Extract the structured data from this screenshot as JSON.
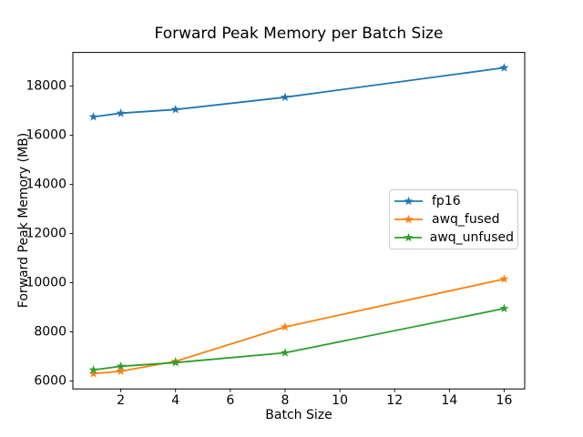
{
  "chart_data": {
    "type": "line",
    "title": "Forward Peak Memory per Batch Size",
    "xlabel": "Batch Size",
    "ylabel": "Forward Peak Memory (MB)",
    "x": [
      1,
      2,
      4,
      8,
      16
    ],
    "series": [
      {
        "name": "fp16",
        "color": "#1f77b4",
        "values": [
          16750,
          16900,
          17050,
          17550,
          18750
        ]
      },
      {
        "name": "awq_fused",
        "color": "#ff7f0e",
        "values": [
          6300,
          6400,
          6800,
          8200,
          10150
        ]
      },
      {
        "name": "awq_unfused",
        "color": "#2ca02c",
        "values": [
          6450,
          6600,
          6750,
          7150,
          8950
        ]
      }
    ],
    "marker": "star",
    "xlim": [
      0.25,
      16.75
    ],
    "ylim": [
      5677.5,
      19372.5
    ],
    "xticks": [
      2,
      4,
      6,
      8,
      10,
      12,
      14,
      16
    ],
    "yticks": [
      6000,
      8000,
      10000,
      12000,
      14000,
      16000,
      18000
    ],
    "grid": false,
    "legend_position": "center-right"
  }
}
